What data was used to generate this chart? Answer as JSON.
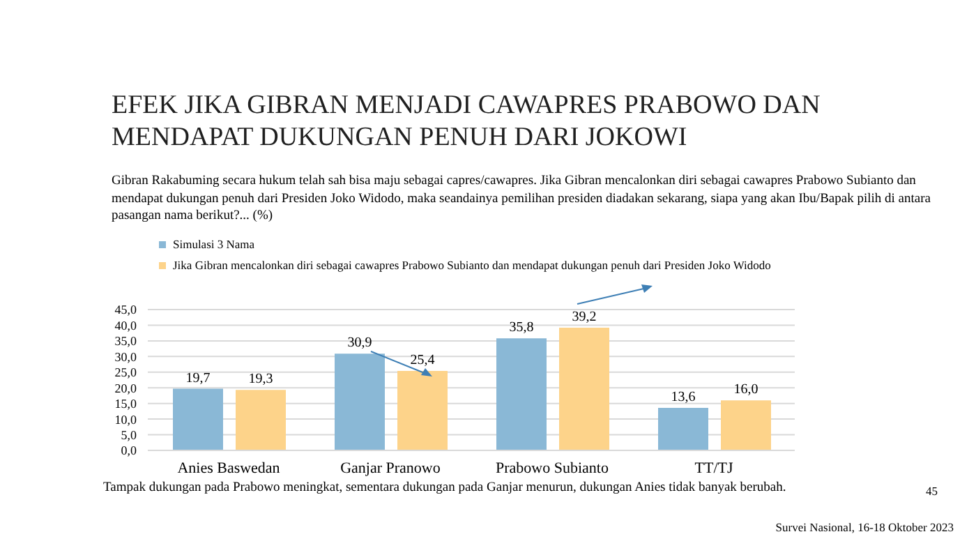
{
  "chart_data": {
    "type": "bar",
    "title": "EFEK JIKA GIBRAN MENJADI CAWAPRES PRABOWO DAN MENDAPAT DUKUNGAN PENUH DARI JOKOWI",
    "subtitle": "Gibran Rakabuming secara hukum telah sah bisa maju sebagai capres/cawapres. Jika Gibran mencalonkan diri sebagai cawapres Prabowo Subianto dan mendapat dukungan penuh dari Presiden Joko Widodo, maka seandainya pemilihan presiden diadakan sekarang, siapa yang akan Ibu/Bapak pilih di antara pasangan nama berikut?... (%)",
    "categories": [
      "Anies Baswedan",
      "Ganjar Pranowo",
      "Prabowo Subianto",
      "TT/TJ"
    ],
    "series": [
      {
        "name": "Simulasi 3 Nama",
        "color": "#8ab8d6",
        "values": [
          19.7,
          30.9,
          35.8,
          13.6
        ],
        "value_labels": [
          "19,7",
          "30,9",
          "35,8",
          "13,6"
        ]
      },
      {
        "name": "Jika Gibran mencalonkan diri sebagai cawapres Prabowo Subianto dan mendapat dukungan penuh dari Presiden Joko Widodo",
        "color": "#fdd38a",
        "values": [
          19.3,
          25.4,
          39.2,
          16.0
        ],
        "value_labels": [
          "19,3",
          "25,4",
          "39,2",
          "16,0"
        ]
      }
    ],
    "ylim": [
      0,
      45
    ],
    "yticks": [
      {
        "value": 0,
        "label": "0,0"
      },
      {
        "value": 5,
        "label": "5,0"
      },
      {
        "value": 10,
        "label": "10,0"
      },
      {
        "value": 15,
        "label": "15,0"
      },
      {
        "value": 20,
        "label": "20,0"
      },
      {
        "value": 25,
        "label": "25,0"
      },
      {
        "value": 30,
        "label": "30,0"
      },
      {
        "value": 35,
        "label": "35,0"
      },
      {
        "value": 40,
        "label": "40,0"
      },
      {
        "value": 45,
        "label": "45,0"
      }
    ],
    "grid": "y",
    "legend": "top left",
    "annotations": [
      "Tampak dukungan pada Prabowo meningkat, sementara dukungan pada Ganjar menurun, dukungan Anies tidak banyak berubah.",
      "45",
      "Survei Nasional, 16-18 Oktober 2023"
    ]
  }
}
